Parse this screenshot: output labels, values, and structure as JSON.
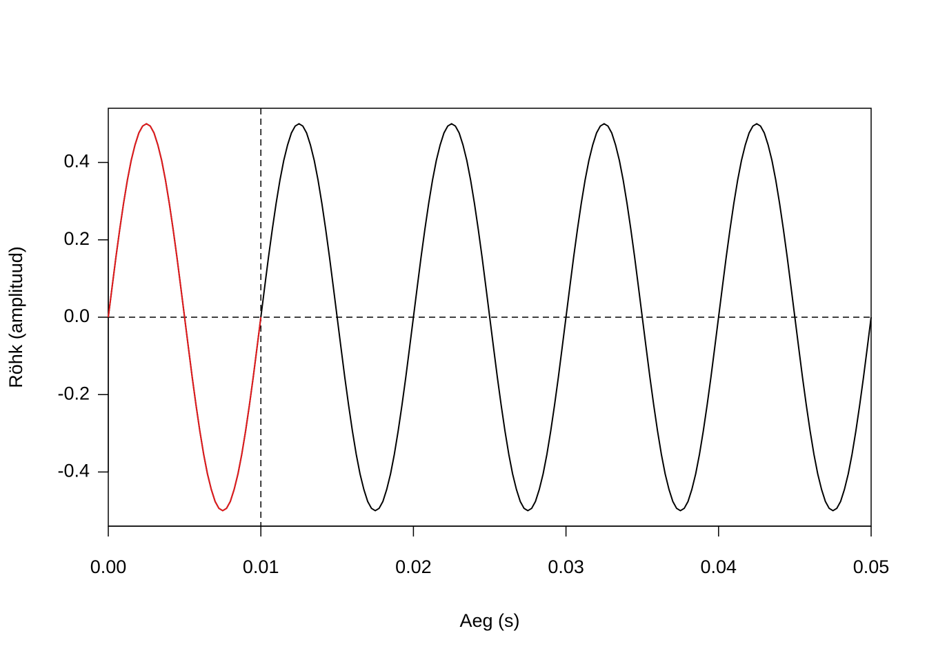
{
  "chart_data": {
    "type": "line",
    "x_label": "Aeg (s)",
    "y_label": "Röhk (amplituud)",
    "xlim": [
      0,
      0.05
    ],
    "ylim": [
      -0.54,
      0.54
    ],
    "xticks": [
      {
        "value": 0,
        "label": "0.00"
      },
      {
        "value": 0.01,
        "label": "0.01"
      },
      {
        "value": 0.02,
        "label": "0.02"
      },
      {
        "value": 0.03,
        "label": "0.03"
      },
      {
        "value": 0.04,
        "label": "0.04"
      },
      {
        "value": 0.05,
        "label": "0.05"
      }
    ],
    "yticks": [
      -0.4,
      -0.2,
      {
        "value": 0,
        "label": "0.0"
      },
      0.2,
      0.4
    ],
    "reference_lines": {
      "x": [
        0.01
      ],
      "y": [
        0
      ],
      "style": "dashed",
      "color": "#000000"
    },
    "series": [
      {
        "color": "#000000",
        "x": [
          0,
          0.00025,
          0.0005,
          0.00075,
          0.001,
          0.00125,
          0.0015,
          0.00175,
          0.002,
          0.00225,
          0.0025,
          0.00275,
          0.003,
          0.00325,
          0.0035,
          0.00375,
          0.004,
          0.00425,
          0.0045,
          0.00475,
          0.005,
          0.00525,
          0.0055,
          0.00575,
          0.006,
          0.00625,
          0.0065,
          0.00675,
          0.007,
          0.00725,
          0.0075,
          0.00775,
          0.008,
          0.00825,
          0.0085,
          0.00875,
          0.009,
          0.00925,
          0.0095,
          0.00975,
          0.01,
          0.01025,
          0.0105,
          0.01075,
          0.011,
          0.01125,
          0.0115,
          0.01175,
          0.012,
          0.01225,
          0.0125,
          0.01275,
          0.013,
          0.01325,
          0.0135,
          0.01375,
          0.014,
          0.01425,
          0.0145,
          0.01475,
          0.015,
          0.01525,
          0.0155,
          0.01575,
          0.016,
          0.01625,
          0.0165,
          0.01675,
          0.017,
          0.01725,
          0.0175,
          0.01775,
          0.018,
          0.01825,
          0.0185,
          0.01875,
          0.019,
          0.01925,
          0.0195,
          0.01975,
          0.02,
          0.02025,
          0.0205,
          0.02075,
          0.021,
          0.02125,
          0.0215,
          0.02175,
          0.022,
          0.02225,
          0.0225,
          0.02275,
          0.023,
          0.02325,
          0.0235,
          0.02375,
          0.024,
          0.02425,
          0.0245,
          0.02475,
          0.025,
          0.02525,
          0.0255,
          0.02575,
          0.026,
          0.02625,
          0.0265,
          0.02675,
          0.027,
          0.02725,
          0.0275,
          0.02775,
          0.028,
          0.02825,
          0.0285,
          0.02875,
          0.029,
          0.02925,
          0.0295,
          0.02975,
          0.03,
          0.03025,
          0.0305,
          0.03075,
          0.031,
          0.03125,
          0.0315,
          0.03175,
          0.032,
          0.03225,
          0.0325,
          0.03275,
          0.033,
          0.03325,
          0.0335,
          0.03375,
          0.034,
          0.03425,
          0.0345,
          0.03475,
          0.035,
          0.03525,
          0.0355,
          0.03575,
          0.036,
          0.03625,
          0.0365,
          0.03675,
          0.037,
          0.03725,
          0.0375,
          0.03775,
          0.038,
          0.03825,
          0.0385,
          0.03875,
          0.039,
          0.03925,
          0.0395,
          0.03975,
          0.04,
          0.04025,
          0.0405,
          0.04075,
          0.041,
          0.04125,
          0.0415,
          0.04175,
          0.042,
          0.04225,
          0.0425,
          0.04275,
          0.043,
          0.04325,
          0.0435,
          0.04375,
          0.044,
          0.04425,
          0.0445,
          0.04475,
          0.045,
          0.04525,
          0.0455,
          0.04575,
          0.046,
          0.04625,
          0.0465,
          0.04675,
          0.047,
          0.04725,
          0.0475,
          0.04775,
          0.048,
          0.04825,
          0.0485,
          0.04875,
          0.049,
          0.04925,
          0.0495,
          0.04975,
          0.05
        ],
        "values": [
          0,
          0.078,
          0.155,
          0.227,
          0.294,
          0.354,
          0.405,
          0.445,
          0.476,
          0.494,
          0.5,
          0.494,
          0.476,
          0.445,
          0.405,
          0.354,
          0.294,
          0.227,
          0.155,
          0.078,
          0,
          -0.078,
          -0.155,
          -0.227,
          -0.294,
          -0.354,
          -0.405,
          -0.445,
          -0.476,
          -0.494,
          -0.5,
          -0.494,
          -0.476,
          -0.445,
          -0.405,
          -0.354,
          -0.294,
          -0.227,
          -0.155,
          -0.078,
          0,
          0.078,
          0.155,
          0.227,
          0.294,
          0.354,
          0.405,
          0.445,
          0.476,
          0.494,
          0.5,
          0.494,
          0.476,
          0.445,
          0.405,
          0.354,
          0.294,
          0.227,
          0.155,
          0.078,
          0,
          -0.078,
          -0.155,
          -0.227,
          -0.294,
          -0.354,
          -0.405,
          -0.445,
          -0.476,
          -0.494,
          -0.5,
          -0.494,
          -0.476,
          -0.445,
          -0.405,
          -0.354,
          -0.294,
          -0.227,
          -0.155,
          -0.078,
          0,
          0.078,
          0.155,
          0.227,
          0.294,
          0.354,
          0.405,
          0.445,
          0.476,
          0.494,
          0.5,
          0.494,
          0.476,
          0.445,
          0.405,
          0.354,
          0.294,
          0.227,
          0.155,
          0.078,
          0,
          -0.078,
          -0.155,
          -0.227,
          -0.294,
          -0.354,
          -0.405,
          -0.445,
          -0.476,
          -0.494,
          -0.5,
          -0.494,
          -0.476,
          -0.445,
          -0.405,
          -0.354,
          -0.294,
          -0.227,
          -0.155,
          -0.078,
          0,
          0.078,
          0.155,
          0.227,
          0.294,
          0.354,
          0.405,
          0.445,
          0.476,
          0.494,
          0.5,
          0.494,
          0.476,
          0.445,
          0.405,
          0.354,
          0.294,
          0.227,
          0.155,
          0.078,
          0,
          -0.078,
          -0.155,
          -0.227,
          -0.294,
          -0.354,
          -0.405,
          -0.445,
          -0.476,
          -0.494,
          -0.5,
          -0.494,
          -0.476,
          -0.445,
          -0.405,
          -0.354,
          -0.294,
          -0.227,
          -0.155,
          -0.078,
          0,
          0.078,
          0.155,
          0.227,
          0.294,
          0.354,
          0.405,
          0.445,
          0.476,
          0.494,
          0.5,
          0.494,
          0.476,
          0.445,
          0.405,
          0.354,
          0.294,
          0.227,
          0.155,
          0.078,
          0,
          -0.078,
          -0.155,
          -0.227,
          -0.294,
          -0.354,
          -0.405,
          -0.445,
          -0.476,
          -0.494,
          -0.5,
          -0.494,
          -0.476,
          -0.445,
          -0.405,
          -0.354,
          -0.294,
          -0.227,
          -0.155,
          -0.078,
          0
        ]
      },
      {
        "color": "#e31a1c",
        "x": [
          0,
          0.00025,
          0.0005,
          0.00075,
          0.001,
          0.00125,
          0.0015,
          0.00175,
          0.002,
          0.00225,
          0.0025,
          0.00275,
          0.003,
          0.00325,
          0.0035,
          0.00375,
          0.004,
          0.00425,
          0.0045,
          0.00475,
          0.005,
          0.00525,
          0.0055,
          0.00575,
          0.006,
          0.00625,
          0.0065,
          0.00675,
          0.007,
          0.00725,
          0.0075,
          0.00775,
          0.008,
          0.00825,
          0.0085,
          0.00875,
          0.009,
          0.00925,
          0.0095,
          0.00975,
          0.01
        ],
        "values": [
          0,
          0.078,
          0.155,
          0.227,
          0.294,
          0.354,
          0.405,
          0.445,
          0.476,
          0.494,
          0.5,
          0.494,
          0.476,
          0.445,
          0.405,
          0.354,
          0.294,
          0.227,
          0.155,
          0.078,
          0,
          -0.078,
          -0.155,
          -0.227,
          -0.294,
          -0.354,
          -0.405,
          -0.445,
          -0.476,
          -0.494,
          -0.5,
          -0.494,
          -0.476,
          -0.445,
          -0.405,
          -0.354,
          -0.294,
          -0.227,
          -0.155,
          -0.078,
          0
        ]
      }
    ]
  }
}
